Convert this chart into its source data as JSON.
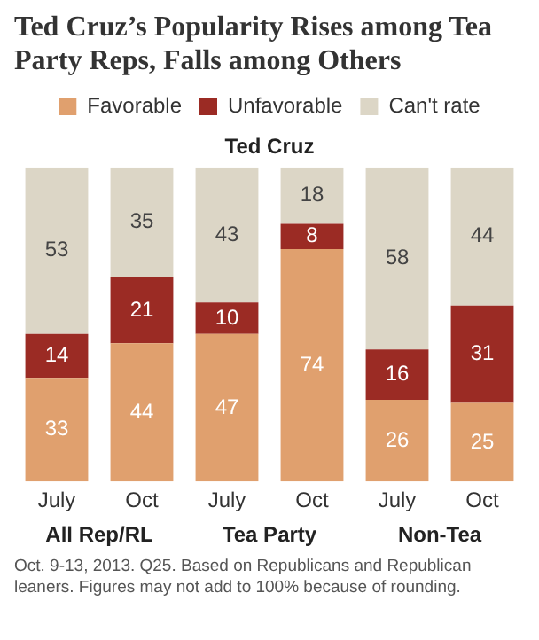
{
  "chart_data": {
    "type": "bar",
    "title": "Ted Cruz’s Popularity Rises among Tea Party Reps, Falls among Others",
    "subtitle": "Ted Cruz",
    "categories": [
      "July",
      "Oct",
      "July",
      "Oct",
      "July",
      "Oct"
    ],
    "series": [
      {
        "name": "Favorable",
        "color": "#e0a06e",
        "values": [
          33,
          44,
          47,
          74,
          26,
          25
        ]
      },
      {
        "name": "Unfavorable",
        "color": "#9b2b24",
        "values": [
          14,
          21,
          10,
          8,
          16,
          31
        ]
      },
      {
        "name": "Can't rate",
        "color": "#dcd6c6",
        "values": [
          53,
          35,
          43,
          18,
          58,
          44
        ]
      }
    ],
    "stacked": true,
    "data_labels": true,
    "legend": "top",
    "grid": false,
    "annotations": [
      "All Rep/RL",
      "Tea Party",
      "Non-Tea",
      "Oct. 9-13, 2013. Q25. Based on Republicans and Republican leaners. Figures may not add to 100% because of rounding."
    ]
  }
}
